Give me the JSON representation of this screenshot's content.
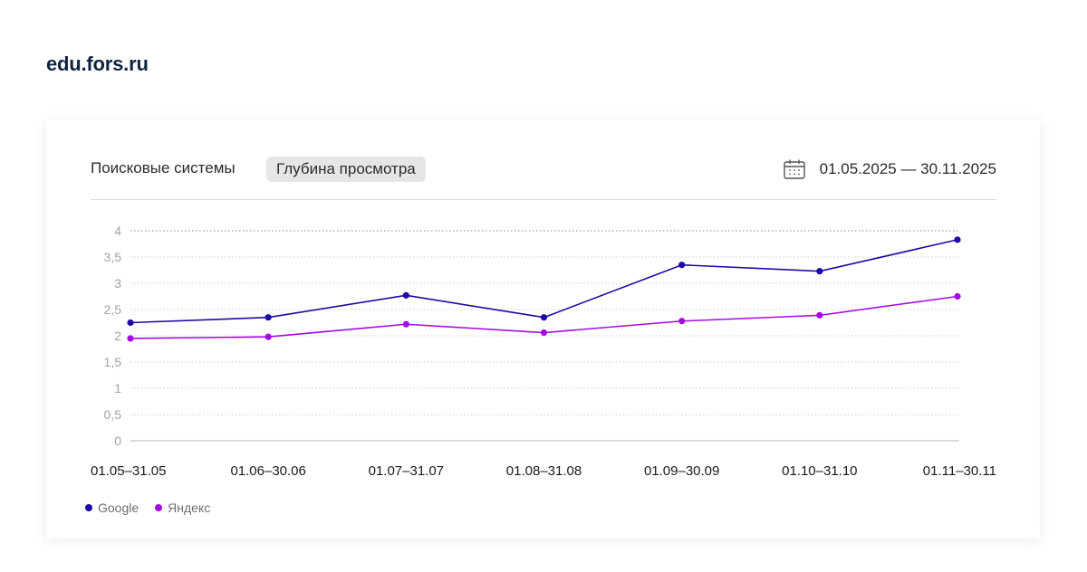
{
  "header": {
    "site": "edu.fors.ru"
  },
  "controls": {
    "tab_search_systems": "Поисковые системы",
    "tab_depth": "Глубина просмотра",
    "date_range": "01.05.2025 — 30.11.2025",
    "calendar_icon": "calendar-icon"
  },
  "colors": {
    "google": "#1e0aa6",
    "yandex": "#a50ae6"
  },
  "legend": {
    "google": "Google",
    "yandex": "Яндекс"
  },
  "chart_data": {
    "type": "line",
    "categories": [
      "01.05–31.05",
      "01.06–30.06",
      "01.07–31.07",
      "01.08–31.08",
      "01.09–30.09",
      "01.10–31.10",
      "01.11–30.11"
    ],
    "series": [
      {
        "name": "Google",
        "values": [
          2.25,
          2.35,
          2.77,
          2.35,
          3.35,
          3.23,
          3.83
        ]
      },
      {
        "name": "Яндекс",
        "values": [
          1.95,
          1.98,
          2.22,
          2.06,
          2.28,
          2.39,
          2.75
        ]
      }
    ],
    "ylim": [
      0,
      4
    ],
    "yticks": [
      "0",
      "0,5",
      "1",
      "1,5",
      "2",
      "2,5",
      "3",
      "3,5",
      "4"
    ],
    "grid": true,
    "legend_position": "bottom-left"
  }
}
